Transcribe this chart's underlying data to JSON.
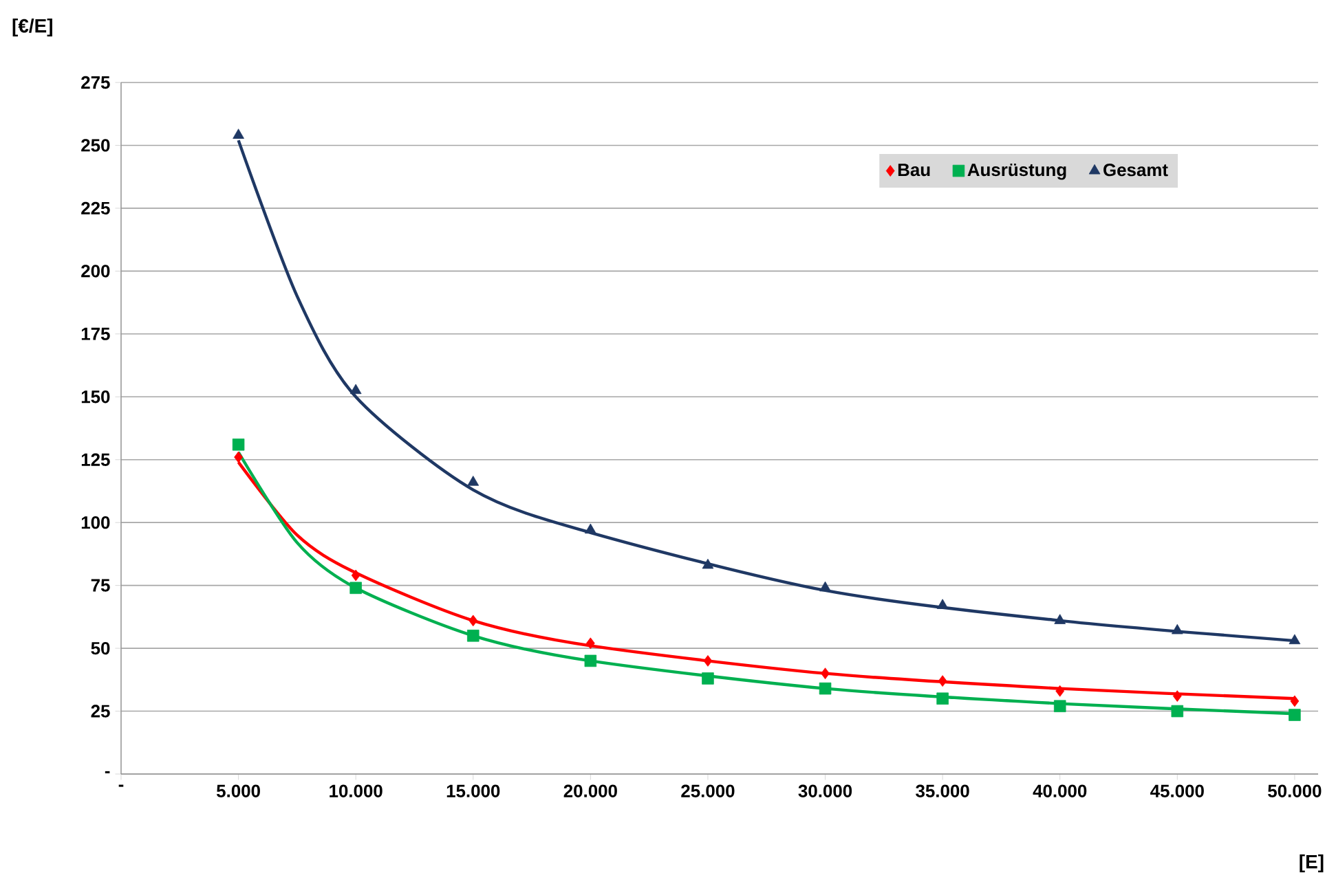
{
  "chart_data": {
    "type": "scatter",
    "xlabel": "[E]",
    "ylabel": "[€/E]",
    "xlim": [
      0,
      51000
    ],
    "ylim": [
      0,
      275
    ],
    "xticks": [
      {
        "value": 0,
        "label": "-"
      },
      {
        "value": 5000,
        "label": "5.000"
      },
      {
        "value": 10000,
        "label": "10.000"
      },
      {
        "value": 15000,
        "label": "15.000"
      },
      {
        "value": 20000,
        "label": "20.000"
      },
      {
        "value": 25000,
        "label": "25.000"
      },
      {
        "value": 30000,
        "label": "30.000"
      },
      {
        "value": 35000,
        "label": "35.000"
      },
      {
        "value": 40000,
        "label": "40.000"
      },
      {
        "value": 45000,
        "label": "45.000"
      },
      {
        "value": 50000,
        "label": "50.000"
      }
    ],
    "yticks": [
      {
        "value": 0,
        "label": "-"
      },
      25,
      50,
      75,
      100,
      125,
      150,
      175,
      200,
      225,
      250,
      275
    ],
    "grid": "y",
    "legend": "top right",
    "series": [
      {
        "type": "line",
        "color": "#ff0000",
        "x": [
          5000,
          7500,
          10000,
          15000,
          20000,
          30000,
          40000,
          50000
        ],
        "values": [
          124,
          95,
          80,
          61,
          51,
          40,
          34,
          30
        ]
      },
      {
        "type": "line",
        "color": "#00b050",
        "x": [
          5000,
          7500,
          10000,
          15000,
          20000,
          30000,
          40000,
          50000
        ],
        "values": [
          128,
          92,
          74,
          55,
          45,
          34,
          28,
          24
        ]
      },
      {
        "type": "line",
        "color": "#1f3864",
        "x": [
          5000,
          7500,
          10000,
          15000,
          20000,
          30000,
          40000,
          50000
        ],
        "values": [
          252,
          190,
          150,
          113,
          96,
          73,
          61,
          53
        ]
      },
      {
        "name": "Bau",
        "color": "#ff0000",
        "marker": "diamond",
        "x": [
          5000,
          10000,
          15000,
          20000,
          25000,
          30000,
          35000,
          40000,
          45000,
          50000
        ],
        "values": [
          126,
          79,
          61,
          52,
          45,
          40,
          37,
          33,
          31,
          29
        ]
      },
      {
        "name": "Ausrüstung",
        "color": "#00b050",
        "marker": "square",
        "x": [
          5000,
          10000,
          15000,
          20000,
          25000,
          30000,
          35000,
          40000,
          45000,
          50000
        ],
        "values": [
          131,
          74,
          55,
          45,
          38,
          34,
          30,
          27,
          25,
          23.5
        ]
      },
      {
        "name": "Gesamt",
        "color": "#1f3864",
        "marker": "triangle",
        "x": [
          5000,
          10000,
          15000,
          20000,
          25000,
          30000,
          35000,
          40000,
          45000,
          50000
        ],
        "values": [
          254,
          152.5,
          116,
          97,
          83,
          74,
          67,
          61,
          57,
          53
        ]
      }
    ]
  }
}
